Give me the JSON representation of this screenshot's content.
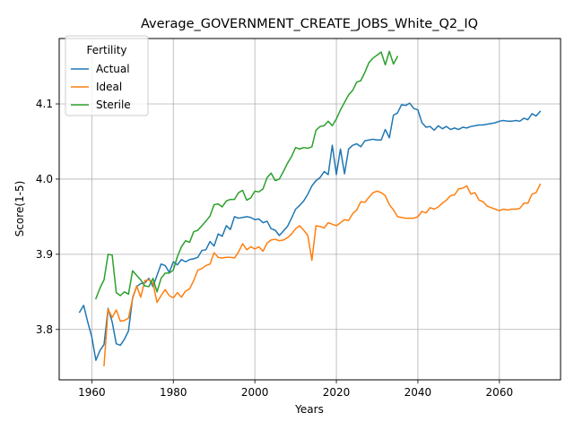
{
  "chart_data": {
    "type": "line",
    "title": "Average_GOVERNMENT_CREATE_JOBS_White_Q2_IQ",
    "xlabel": "Years",
    "ylabel": "Score(1-5)",
    "xlim": [
      1952,
      2075
    ],
    "ylim": [
      3.733,
      4.187
    ],
    "xticks": [
      1960,
      1980,
      2000,
      2020,
      2040,
      2060
    ],
    "yticks": [
      3.8,
      3.9,
      4.0,
      4.1
    ],
    "ytick_labels": [
      "3.8",
      "3.9",
      "4.0",
      "4.1"
    ],
    "grid": true,
    "legend": {
      "title": "Fertility",
      "placement": "top-left"
    },
    "series": [
      {
        "name": "Actual",
        "color": "#1f77b4",
        "x": [
          1957,
          1958,
          1959,
          1960,
          1961,
          1962,
          1963,
          1964,
          1965,
          1966,
          1967,
          1968,
          1969,
          1970,
          1971,
          1972,
          1973,
          1974,
          1975,
          1976,
          1977,
          1978,
          1979,
          1980,
          1981,
          1982,
          1983,
          1984,
          1985,
          1986,
          1987,
          1988,
          1989,
          1990,
          1991,
          1992,
          1993,
          1994,
          1995,
          1996,
          1997,
          1998,
          1999,
          2000,
          2001,
          2002,
          2003,
          2004,
          2005,
          2006,
          2007,
          2008,
          2009,
          2010,
          2011,
          2012,
          2013,
          2014,
          2015,
          2016,
          2017,
          2018,
          2019,
          2020,
          2021,
          2022,
          2023,
          2024,
          2025,
          2026,
          2027,
          2028,
          2029,
          2030,
          2031,
          2032,
          2033,
          2034,
          2035,
          2036,
          2037,
          2038,
          2039,
          2040,
          2041,
          2042,
          2043,
          2044,
          2045,
          2046,
          2047,
          2048,
          2049,
          2050,
          2051,
          2052,
          2053,
          2054,
          2055,
          2056,
          2057,
          2058,
          2059,
          2060,
          2061,
          2062,
          2063,
          2064,
          2065,
          2066,
          2067,
          2068,
          2069,
          2070
        ],
        "values": [
          3.823,
          3.832,
          3.81,
          3.79,
          3.759,
          3.772,
          3.78,
          3.828,
          3.81,
          3.781,
          3.779,
          3.787,
          3.798,
          3.842,
          3.857,
          3.861,
          3.862,
          3.868,
          3.857,
          3.872,
          3.887,
          3.885,
          3.876,
          3.89,
          3.886,
          3.893,
          3.89,
          3.893,
          3.894,
          3.896,
          3.905,
          3.906,
          3.917,
          3.911,
          3.927,
          3.924,
          3.938,
          3.933,
          3.95,
          3.948,
          3.949,
          3.95,
          3.949,
          3.946,
          3.947,
          3.942,
          3.944,
          3.934,
          3.932,
          3.925,
          3.931,
          3.937,
          3.948,
          3.96,
          3.965,
          3.971,
          3.98,
          3.991,
          3.998,
          4.002,
          4.01,
          4.006,
          4.045,
          4.006,
          4.04,
          4.007,
          4.04,
          4.045,
          4.047,
          4.043,
          4.051,
          4.052,
          4.053,
          4.052,
          4.052,
          4.066,
          4.055,
          4.085,
          4.088,
          4.099,
          4.098,
          4.101,
          4.094,
          4.092,
          4.075,
          4.069,
          4.07,
          4.065,
          4.071,
          4.067,
          4.07,
          4.066,
          4.068,
          4.066,
          4.069,
          4.068,
          4.07,
          4.071,
          4.072,
          4.072,
          4.073,
          4.074,
          4.075,
          4.077,
          4.078,
          4.077,
          4.077,
          4.078,
          4.077,
          4.081,
          4.079,
          4.087,
          4.084,
          4.09
        ]
      },
      {
        "name": "Ideal",
        "color": "#ff7f0e",
        "x": [
          1963,
          1964,
          1965,
          1966,
          1967,
          1968,
          1969,
          1970,
          1971,
          1972,
          1973,
          1974,
          1975,
          1976,
          1977,
          1978,
          1979,
          1980,
          1981,
          1982,
          1983,
          1984,
          1985,
          1986,
          1987,
          1988,
          1989,
          1990,
          1991,
          1992,
          1993,
          1994,
          1995,
          1996,
          1997,
          1998,
          1999,
          2000,
          2001,
          2002,
          2003,
          2004,
          2005,
          2006,
          2007,
          2008,
          2009,
          2010,
          2011,
          2012,
          2013,
          2014,
          2015,
          2016,
          2017,
          2018,
          2019,
          2020,
          2021,
          2022,
          2023,
          2024,
          2025,
          2026,
          2027,
          2028,
          2029,
          2030,
          2031,
          2032,
          2033,
          2034,
          2035,
          2036,
          2037,
          2038,
          2039,
          2040,
          2041,
          2042,
          2043,
          2044,
          2045,
          2046,
          2047,
          2048,
          2049,
          2050,
          2051,
          2052,
          2053,
          2054,
          2055,
          2056,
          2057,
          2058,
          2059,
          2060,
          2061,
          2062,
          2063,
          2064,
          2065,
          2066,
          2067,
          2068,
          2069,
          2070
        ],
        "values": [
          3.752,
          3.827,
          3.816,
          3.826,
          3.811,
          3.812,
          3.815,
          3.841,
          3.858,
          3.843,
          3.865,
          3.866,
          3.862,
          3.836,
          3.845,
          3.853,
          3.845,
          3.842,
          3.849,
          3.843,
          3.851,
          3.854,
          3.865,
          3.879,
          3.881,
          3.885,
          3.887,
          3.902,
          3.896,
          3.895,
          3.896,
          3.896,
          3.895,
          3.903,
          3.914,
          3.906,
          3.91,
          3.907,
          3.91,
          3.904,
          3.915,
          3.919,
          3.92,
          3.918,
          3.919,
          3.922,
          3.927,
          3.934,
          3.938,
          3.932,
          3.925,
          3.892,
          3.938,
          3.937,
          3.935,
          3.942,
          3.94,
          3.938,
          3.942,
          3.946,
          3.945,
          3.954,
          3.959,
          3.97,
          3.969,
          3.976,
          3.982,
          3.984,
          3.982,
          3.978,
          3.966,
          3.959,
          3.95,
          3.949,
          3.948,
          3.948,
          3.948,
          3.95,
          3.957,
          3.955,
          3.962,
          3.96,
          3.963,
          3.968,
          3.972,
          3.978,
          3.979,
          3.987,
          3.988,
          3.991,
          3.98,
          3.982,
          3.972,
          3.97,
          3.964,
          3.962,
          3.96,
          3.958,
          3.96,
          3.959,
          3.96,
          3.96,
          3.961,
          3.968,
          3.968,
          3.98,
          3.982,
          3.993
        ]
      },
      {
        "name": "Sterile",
        "color": "#2ca02c",
        "x": [
          1961,
          1962,
          1963,
          1964,
          1965,
          1966,
          1967,
          1968,
          1969,
          1970,
          1971,
          1972,
          1973,
          1974,
          1975,
          1976,
          1977,
          1978,
          1979,
          1980,
          1981,
          1982,
          1983,
          1984,
          1985,
          1986,
          1987,
          1988,
          1989,
          1990,
          1991,
          1992,
          1993,
          1994,
          1995,
          1996,
          1997,
          1998,
          1999,
          2000,
          2001,
          2002,
          2003,
          2004,
          2005,
          2006,
          2007,
          2008,
          2009,
          2010,
          2011,
          2012,
          2013,
          2014,
          2015,
          2016,
          2017,
          2018,
          2019,
          2020,
          2021,
          2022,
          2023,
          2024,
          2025,
          2026,
          2027,
          2028,
          2029,
          2030,
          2031,
          2032,
          2033,
          2034,
          2035
        ],
        "values": [
          3.841,
          3.855,
          3.866,
          3.9,
          3.899,
          3.849,
          3.845,
          3.85,
          3.847,
          3.878,
          3.872,
          3.866,
          3.858,
          3.857,
          3.868,
          3.85,
          3.868,
          3.875,
          3.875,
          3.879,
          3.897,
          3.91,
          3.918,
          3.916,
          3.93,
          3.932,
          3.938,
          3.944,
          3.951,
          3.966,
          3.967,
          3.963,
          3.971,
          3.973,
          3.973,
          3.982,
          3.985,
          3.972,
          3.975,
          3.984,
          3.983,
          3.987,
          4.002,
          4.008,
          3.998,
          4.0,
          4.01,
          4.021,
          4.03,
          4.042,
          4.04,
          4.042,
          4.041,
          4.043,
          4.065,
          4.07,
          4.071,
          4.077,
          4.071,
          4.08,
          4.092,
          4.102,
          4.112,
          4.118,
          4.129,
          4.131,
          4.142,
          4.155,
          4.161,
          4.165,
          4.169,
          4.152,
          4.17,
          4.153,
          4.163
        ]
      }
    ]
  }
}
